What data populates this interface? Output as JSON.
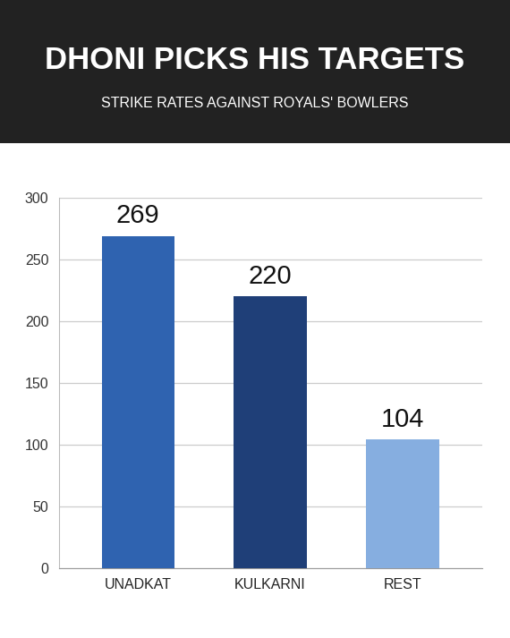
{
  "chart_data": {
    "type": "bar",
    "title": "DHONI PICKS HIS TARGETS",
    "subtitle": "STRIKE RATES AGAINST ROYALS' BOWLERS",
    "categories": [
      "UNADKAT",
      "KULKARNI",
      "REST"
    ],
    "values": [
      269,
      220,
      104
    ],
    "colors": [
      "#2f63b0",
      "#1f3f78",
      "#86aee0"
    ],
    "ylim": [
      0,
      300
    ],
    "yticks": [
      0,
      50,
      100,
      150,
      200,
      250,
      300
    ],
    "grid": true,
    "data_labels": true
  }
}
